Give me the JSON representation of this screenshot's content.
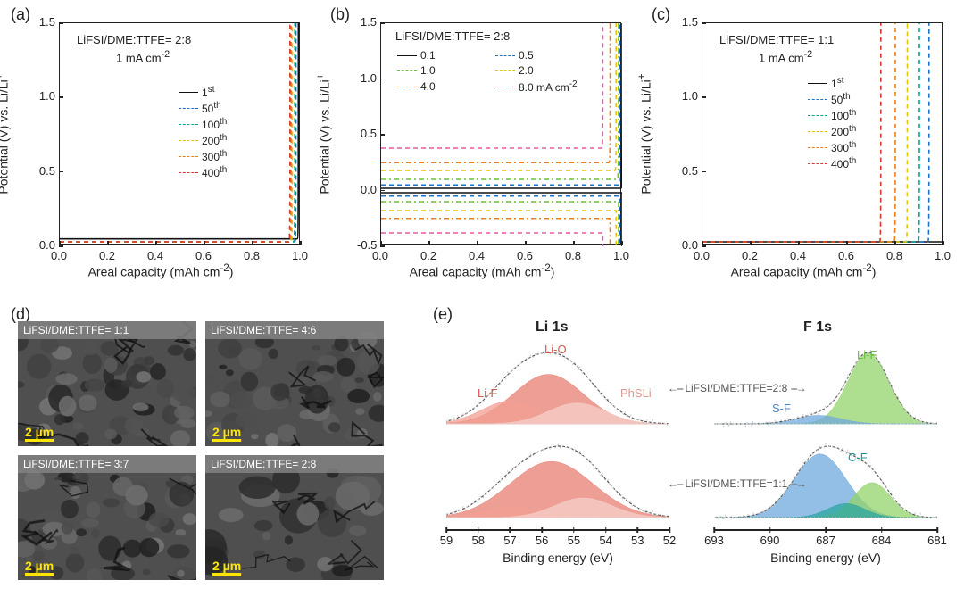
{
  "labels": {
    "a": "(a)",
    "b": "(b)",
    "c": "(c)",
    "d": "(d)",
    "e": "(e)"
  },
  "common": {
    "ylabel_html": "Potential (V) vs. Li/Li<sup>+</sup>",
    "xlabel_html": "Areal capacity (mAh cm<sup>-2</sup>)"
  },
  "chart_a": {
    "title1": "LiFSI/DME:TTFE= 2:8",
    "title2_html": "1 mA cm<sup>-2</sup>",
    "xlim": [
      0.0,
      1.0
    ],
    "xtick_step": 0.2,
    "ylim": [
      0.0,
      1.5
    ],
    "ytick_step": 0.5,
    "series": [
      {
        "label_html": "1<sup>st</sup>",
        "color": "#111111",
        "dash": "solid",
        "charge_x": 0.99,
        "plateau_up": 0.05,
        "plateau_dn": -0.05
      },
      {
        "label_html": "50<sup>th</sup>",
        "color": "#1e73c9",
        "dash": "dashed",
        "charge_x": 0.98,
        "plateau_up": 0.03,
        "plateau_dn": -0.03
      },
      {
        "label_html": "100<sup>th</sup>",
        "color": "#00a98f",
        "dash": "dashed",
        "charge_x": 0.975,
        "plateau_up": 0.03,
        "plateau_dn": -0.03
      },
      {
        "label_html": "200<sup>th</sup>",
        "color": "#e6c200",
        "dash": "dashed",
        "charge_x": 0.965,
        "plateau_up": 0.03,
        "plateau_dn": -0.03
      },
      {
        "label_html": "300<sup>th</sup>",
        "color": "#ea7f1d",
        "dash": "dashed",
        "charge_x": 0.96,
        "plateau_up": 0.03,
        "plateau_dn": -0.03
      },
      {
        "label_html": "400<sup>th</sup>",
        "color": "#d33b2f",
        "dash": "dashed",
        "charge_x": 0.955,
        "plateau_up": 0.03,
        "plateau_dn": -0.03
      }
    ]
  },
  "chart_b": {
    "title1": "LiFSI/DME:TTFE= 2:8",
    "xlim": [
      0.0,
      1.0
    ],
    "xtick_step": 0.2,
    "ylim": [
      -0.5,
      1.5
    ],
    "ytick_step": 0.5,
    "legend_suffix_html": " mA cm<sup>-2</sup>",
    "legend_cols": 2,
    "series": [
      {
        "label": "0.1",
        "color": "#111111",
        "dash": "solid",
        "charge_x": 1.0,
        "plateau_up": 0.02,
        "plateau_dn": -0.02
      },
      {
        "label": "0.5",
        "color": "#1e73c9",
        "dash": "dashed",
        "charge_x": 0.99,
        "plateau_up": 0.05,
        "plateau_dn": -0.05
      },
      {
        "label": "1.0",
        "color": "#6fbf3a",
        "dash": "dashdot",
        "charge_x": 0.985,
        "plateau_up": 0.1,
        "plateau_dn": -0.1
      },
      {
        "label": "2.0",
        "color": "#e6c200",
        "dash": "dashed",
        "charge_x": 0.975,
        "plateau_up": 0.18,
        "plateau_dn": -0.18
      },
      {
        "label": "4.0",
        "color": "#ea7f1d",
        "dash": "dashdot",
        "charge_x": 0.95,
        "plateau_up": 0.25,
        "plateau_dn": -0.25
      },
      {
        "label": "8.0",
        "color": "#e25aa0",
        "dash": "dashed",
        "charge_x": 0.92,
        "plateau_up": 0.38,
        "plateau_dn": -0.38
      }
    ]
  },
  "chart_c": {
    "title1": "LiFSI/DME:TTFE= 1:1",
    "title2_html": "1 mA cm<sup>-2</sup>",
    "xlim": [
      0.0,
      1.0
    ],
    "xtick_step": 0.2,
    "ylim": [
      0.0,
      1.5
    ],
    "ytick_step": 0.5,
    "series": [
      {
        "label_html": "1<sup>st</sup>",
        "color": "#111111",
        "dash": "solid",
        "first_dip": true,
        "charge_x": 1.0,
        "plateau_up": 0.03,
        "plateau_dn": -0.03
      },
      {
        "label_html": "50<sup>th</sup>",
        "color": "#1e73c9",
        "dash": "dashed",
        "charge_x": 0.94,
        "plateau_up": 0.03,
        "plateau_dn": -0.03
      },
      {
        "label_html": "100<sup>th</sup>",
        "color": "#00a98f",
        "dash": "dashed",
        "charge_x": 0.9,
        "plateau_up": 0.03,
        "plateau_dn": -0.03
      },
      {
        "label_html": "200<sup>th</sup>",
        "color": "#e6c200",
        "dash": "dashed",
        "charge_x": 0.85,
        "plateau_up": 0.03,
        "plateau_dn": -0.03
      },
      {
        "label_html": "300<sup>th</sup>",
        "color": "#ea7f1d",
        "dash": "dashed",
        "charge_x": 0.8,
        "plateau_up": 0.03,
        "plateau_dn": -0.03
      },
      {
        "label_html": "400<sup>th</sup>",
        "color": "#d33b2f",
        "dash": "dashed",
        "charge_x": 0.74,
        "plateau_up": 0.03,
        "plateau_dn": -0.03
      }
    ]
  },
  "sem": {
    "scalebar_html": "2 µm",
    "cells": [
      {
        "caption": "LiFSI/DME:TTFE= 1:1",
        "seed": 1
      },
      {
        "caption": "LiFSI/DME:TTFE= 4:6",
        "seed": 2
      },
      {
        "caption": "LiFSI/DME:TTFE= 3:7",
        "seed": 3
      },
      {
        "caption": "LiFSI/DME:TTFE= 2:8",
        "seed": 4
      }
    ]
  },
  "xps": {
    "li": {
      "title": "Li 1s",
      "xlabel": "Binding energy (eV)",
      "xmin": 52,
      "xmax": 59,
      "xtick_step": 1,
      "label_top": {
        "liF": "Li-F",
        "lio": "Li-O",
        "phsli": "PhSLi"
      },
      "colors": {
        "liF": "#f19e93",
        "lio": "#e77f72",
        "phsli": "#f6cfc9"
      },
      "rows": [
        {
          "note": "LiFSI/DME:TTFE=2:8",
          "peaks": [
            {
              "key": "lio",
              "mu": 55.8,
              "sigma": 1.1,
              "amp": 1.0
            },
            {
              "key": "liF",
              "mu": 57.0,
              "sigma": 0.9,
              "amp": 0.46
            },
            {
              "key": "phsli",
              "mu": 54.9,
              "sigma": 0.9,
              "amp": 0.42
            }
          ]
        },
        {
          "note": "LiFSI/DME:TTFE=1:1",
          "peaks": [
            {
              "key": "lio",
              "mu": 55.7,
              "sigma": 1.3,
              "amp": 1.0
            },
            {
              "key": "liF",
              "mu": 57.0,
              "sigma": 0.9,
              "amp": 0.2
            },
            {
              "key": "phsli",
              "mu": 54.7,
              "sigma": 0.9,
              "amp": 0.35
            }
          ]
        }
      ]
    },
    "f": {
      "title": "F 1s",
      "xlabel": "Binding energy (eV)",
      "xmin": 681,
      "xmax": 693,
      "xtick_step": 3,
      "labels": {
        "liF": "Li-F",
        "sf": "S-F",
        "cf": "C-F"
      },
      "colors": {
        "liF": "#93d36a",
        "sf": "#6fa8dc",
        "cf": "#2aa6a0"
      },
      "rows": [
        {
          "peaks": [
            {
              "key": "liF",
              "mu": 684.7,
              "sigma": 1.1,
              "amp": 1.0
            },
            {
              "key": "sf",
              "mu": 687.4,
              "sigma": 1.2,
              "amp": 0.12
            }
          ]
        },
        {
          "peaks": [
            {
              "key": "sf",
              "mu": 687.3,
              "sigma": 1.4,
              "amp": 1.0
            },
            {
              "key": "liF",
              "mu": 684.5,
              "sigma": 1.0,
              "amp": 0.55
            },
            {
              "key": "cf",
              "mu": 685.9,
              "sigma": 1.0,
              "amp": 0.22
            }
          ]
        }
      ]
    }
  }
}
